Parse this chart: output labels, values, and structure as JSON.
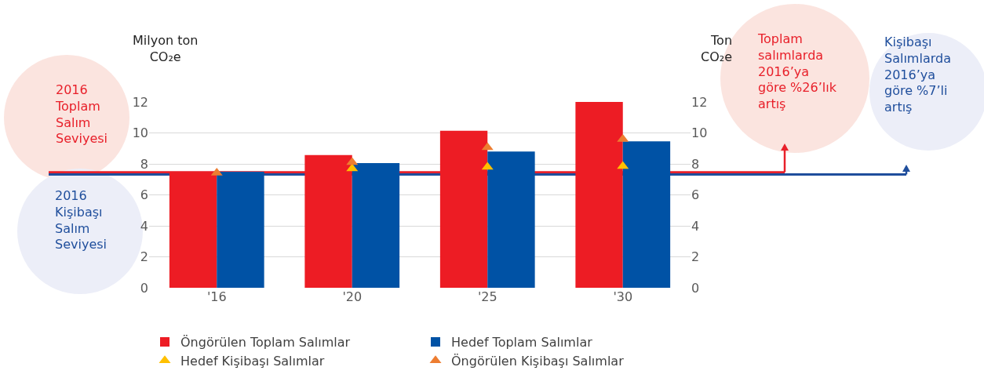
{
  "chart_data": {
    "type": "bar",
    "categories": [
      "'16",
      "'20",
      "'25",
      "'30"
    ],
    "ylabel": "Milyon ton\nCO₂e",
    "y2label": "Ton\nCO₂e",
    "series": [
      {
        "name": "Öngörülen Toplam Salımlar",
        "color": "#ed1c24",
        "values": [
          7.46,
          8.57,
          10.14,
          12.0
        ]
      },
      {
        "name": "Hedef Toplam Salımlar",
        "color": "#0052a5",
        "values": [
          7.5,
          8.05,
          8.8,
          9.46
        ]
      },
      {
        "name": "Hedef Kişibaşı Salımlar",
        "type": "scatter",
        "axis": "y2",
        "color": "#ffc000",
        "x": [
          "'16",
          "'20",
          "'25",
          "'30"
        ],
        "values": [
          null,
          7.7,
          7.8,
          7.85
        ]
      },
      {
        "name": "Öngörülen Kişibaşı Salımlar",
        "type": "scatter",
        "axis": "y2",
        "color": "#ed7d31",
        "x": [
          "'16",
          "'20",
          "'25",
          "'30"
        ],
        "values": [
          7.42,
          8.1,
          9.06,
          9.6
        ]
      }
    ],
    "marker": "triangle",
    "ylim": [
      0,
      12
    ],
    "yticks": [
      0,
      2,
      4,
      6,
      8,
      10,
      12
    ],
    "y2lim": [
      0,
      12
    ],
    "y2ticks": [
      0,
      2,
      4,
      6,
      8,
      10,
      12
    ],
    "grid": "y",
    "legend": "bottom",
    "ref_lines": [
      {
        "axis": "y",
        "value": 7.46,
        "label": "2016\nToplam\nSalım\nSeviyesi",
        "color": "#e8202a"
      },
      {
        "axis": "y2",
        "value": 7.32,
        "label": "2016\nKişibaşı\nSalım\nSeviyesi",
        "color": "#1f4e9c"
      }
    ],
    "annotations": [
      "Toplam\nsalımlarda\n2016’ya\ngöre %26’lık\nartış",
      "Kişibaşı\nSalımlarda\n2016’ya\ngöre %7’li\nartış"
    ]
  }
}
